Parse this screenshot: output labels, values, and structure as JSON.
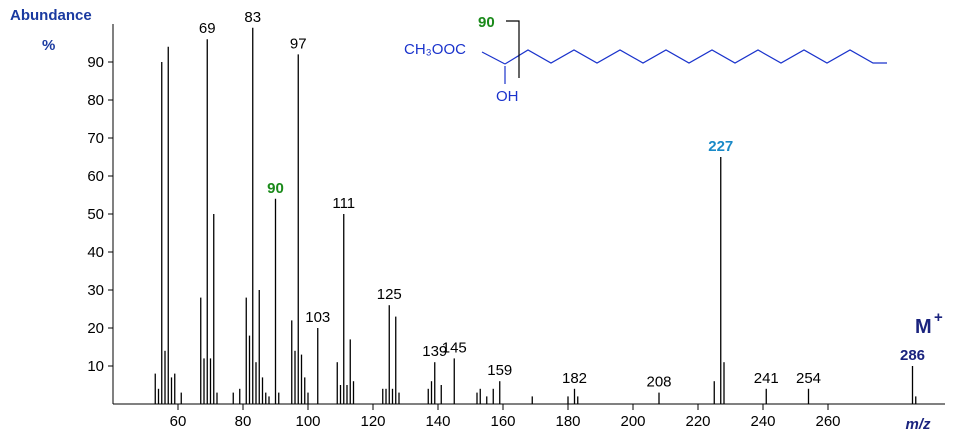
{
  "chart_data": {
    "type": "bar",
    "y_title": "Abundance",
    "y_unit": "%",
    "x_title": "m/z",
    "color": "#000000",
    "x": [
      53,
      54,
      55,
      56,
      57,
      58,
      59,
      61,
      67,
      68,
      69,
      70,
      71,
      72,
      77,
      79,
      81,
      82,
      83,
      84,
      85,
      86,
      87,
      88,
      90,
      91,
      95,
      96,
      97,
      98,
      99,
      100,
      103,
      109,
      110,
      111,
      112,
      113,
      114,
      123,
      124,
      125,
      126,
      127,
      128,
      137,
      138,
      139,
      141,
      145,
      152,
      153,
      155,
      157,
      159,
      169,
      180,
      182,
      183,
      208,
      225,
      227,
      228,
      241,
      254,
      286,
      287
    ],
    "values": [
      8,
      4,
      90,
      14,
      94,
      7,
      8,
      3,
      28,
      12,
      96,
      12,
      50,
      3,
      3,
      4,
      28,
      18,
      99,
      11,
      30,
      7,
      3,
      2,
      54,
      3,
      22,
      14,
      92,
      13,
      7,
      3,
      20,
      11,
      5,
      50,
      5,
      17,
      6,
      4,
      4,
      26,
      4,
      23,
      3,
      4,
      6,
      11,
      5,
      12,
      3,
      4,
      2,
      4,
      6,
      2,
      2,
      4,
      2,
      3,
      6,
      65,
      11,
      4,
      4,
      10,
      2
    ],
    "xlim": [
      40,
      296
    ],
    "ylim": [
      0,
      100
    ],
    "xticks": [
      60,
      80,
      100,
      120,
      140,
      160,
      180,
      200,
      220,
      240,
      260
    ],
    "yticks": [
      10,
      20,
      30,
      40,
      50,
      60,
      70,
      80,
      90
    ],
    "peak_labels": [
      69,
      83,
      90,
      97,
      103,
      111,
      125,
      139,
      145,
      159,
      182,
      208,
      227,
      241,
      254,
      286
    ],
    "peak_label_colors": [
      "#000000",
      "#000000",
      "#1a8a1a",
      "#000000",
      "#000000",
      "#000000",
      "#000000",
      "#000000",
      "#000000",
      "#000000",
      "#000000",
      "#000000",
      "#1a8ac8",
      "#000000",
      "#000000",
      "#1a237e"
    ],
    "molecular_ion": "M",
    "molecular_ion_charge": "+",
    "structure": {
      "ester": "CH₃OOC",
      "hydroxyl": "OH",
      "cleavage_label": "90"
    }
  }
}
